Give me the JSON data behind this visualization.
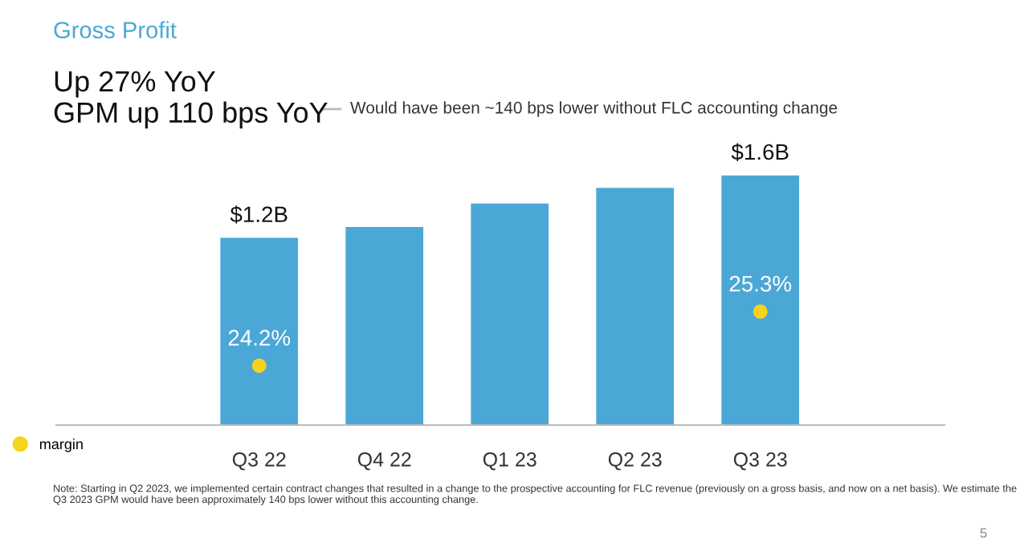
{
  "chart_data": {
    "type": "bar",
    "title": "Gross Profit",
    "subtitle": "Up 27% YoY\nGPM up 110 bps YoY",
    "annotations": [
      "Would have been ~140 bps lower without FLC accounting change",
      "Note: Starting in Q2 2023, we implemented certain contract changes that resulted in a change to the prospective accounting for FLC revenue (previously on a gross basis, and now on a net basis). We estimate the Q3 2023 GPM would have been approximately 140 bps lower without this accounting change.",
      "5"
    ],
    "categories": [
      "Q3 22",
      "Q4 22",
      "Q1 23",
      "Q2 23",
      "Q3 23"
    ],
    "series": [
      {
        "color": "#4ba8d6",
        "values": [
          1.2,
          1.27,
          1.42,
          1.52,
          1.6
        ],
        "value_labels": [
          "$1.2B",
          null,
          null,
          null,
          "$1.6B"
        ]
      },
      {
        "type": "scatter",
        "name": "margin",
        "color": "#f7d31c",
        "axis": "y2",
        "values": [
          24.2,
          null,
          null,
          null,
          25.3
        ],
        "value_labels": [
          "24.2%",
          null,
          null,
          null,
          "25.3%"
        ]
      }
    ],
    "legend": "bottom left",
    "grid": false,
    "marker": "circle"
  }
}
